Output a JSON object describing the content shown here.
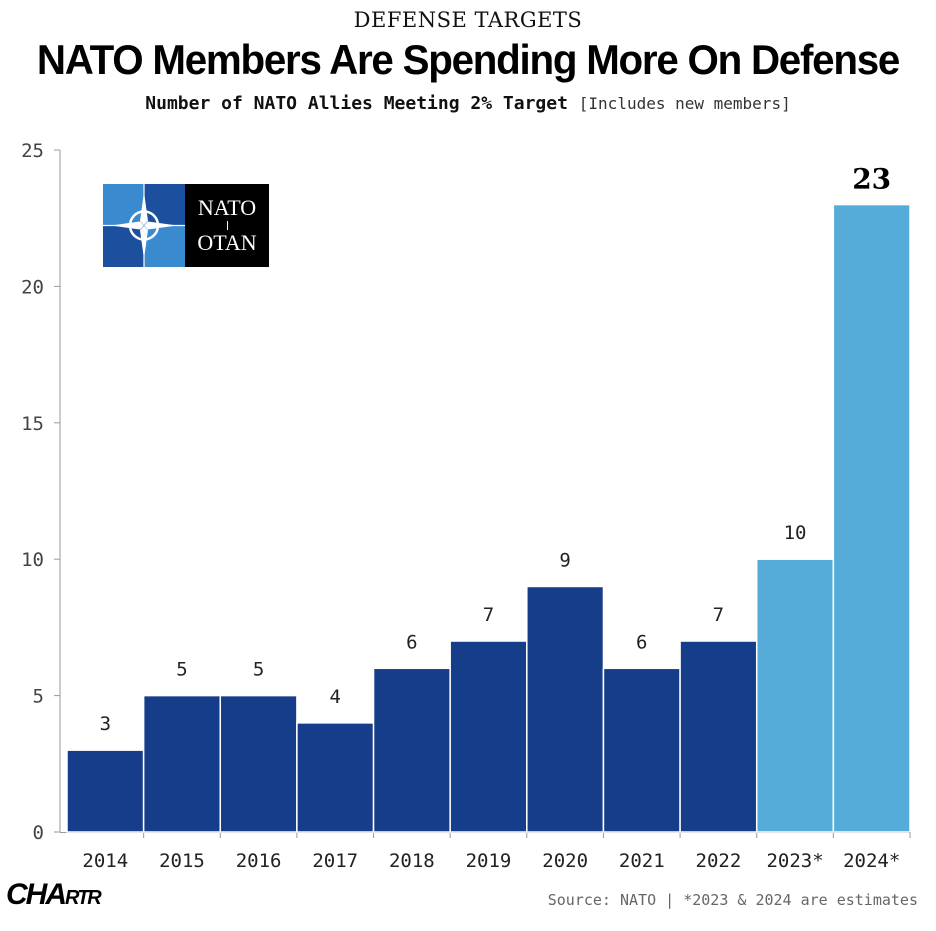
{
  "header": {
    "kicker": "DEFENSE TARGETS",
    "title": "NATO Members Are Spending More On Defense",
    "subtitle": "Number of NATO Allies Meeting 2% Target",
    "subtitle_note": "[Includes new members]"
  },
  "logo": {
    "line1": "NATO",
    "line2": "OTAN",
    "icon": "compass-rose-icon"
  },
  "brand": {
    "big": "CHA",
    "rest": "RTR"
  },
  "source": "Source: NATO | *2023 & 2024 are estimates",
  "colors": {
    "actual": "#163d8a",
    "estimate": "#55acd9",
    "axis": "#999999"
  },
  "chart_data": {
    "type": "bar",
    "title": "Number of NATO Allies Meeting 2% Target",
    "xlabel": "",
    "ylabel": "",
    "categories": [
      "2014",
      "2015",
      "2016",
      "2017",
      "2018",
      "2019",
      "2020",
      "2021",
      "2022",
      "2023*",
      "2024*"
    ],
    "values": [
      3,
      5,
      5,
      4,
      6,
      7,
      9,
      6,
      7,
      10,
      23
    ],
    "estimate": [
      false,
      false,
      false,
      false,
      false,
      false,
      false,
      false,
      false,
      true,
      true
    ],
    "value_labels": [
      "3",
      "5",
      "5",
      "4",
      "6",
      "7",
      "9",
      "6",
      "7",
      "10",
      "23"
    ],
    "ylim": [
      0,
      25
    ],
    "yticks": [
      "0",
      "5",
      "10",
      "15",
      "20",
      "25"
    ],
    "grid": false
  }
}
